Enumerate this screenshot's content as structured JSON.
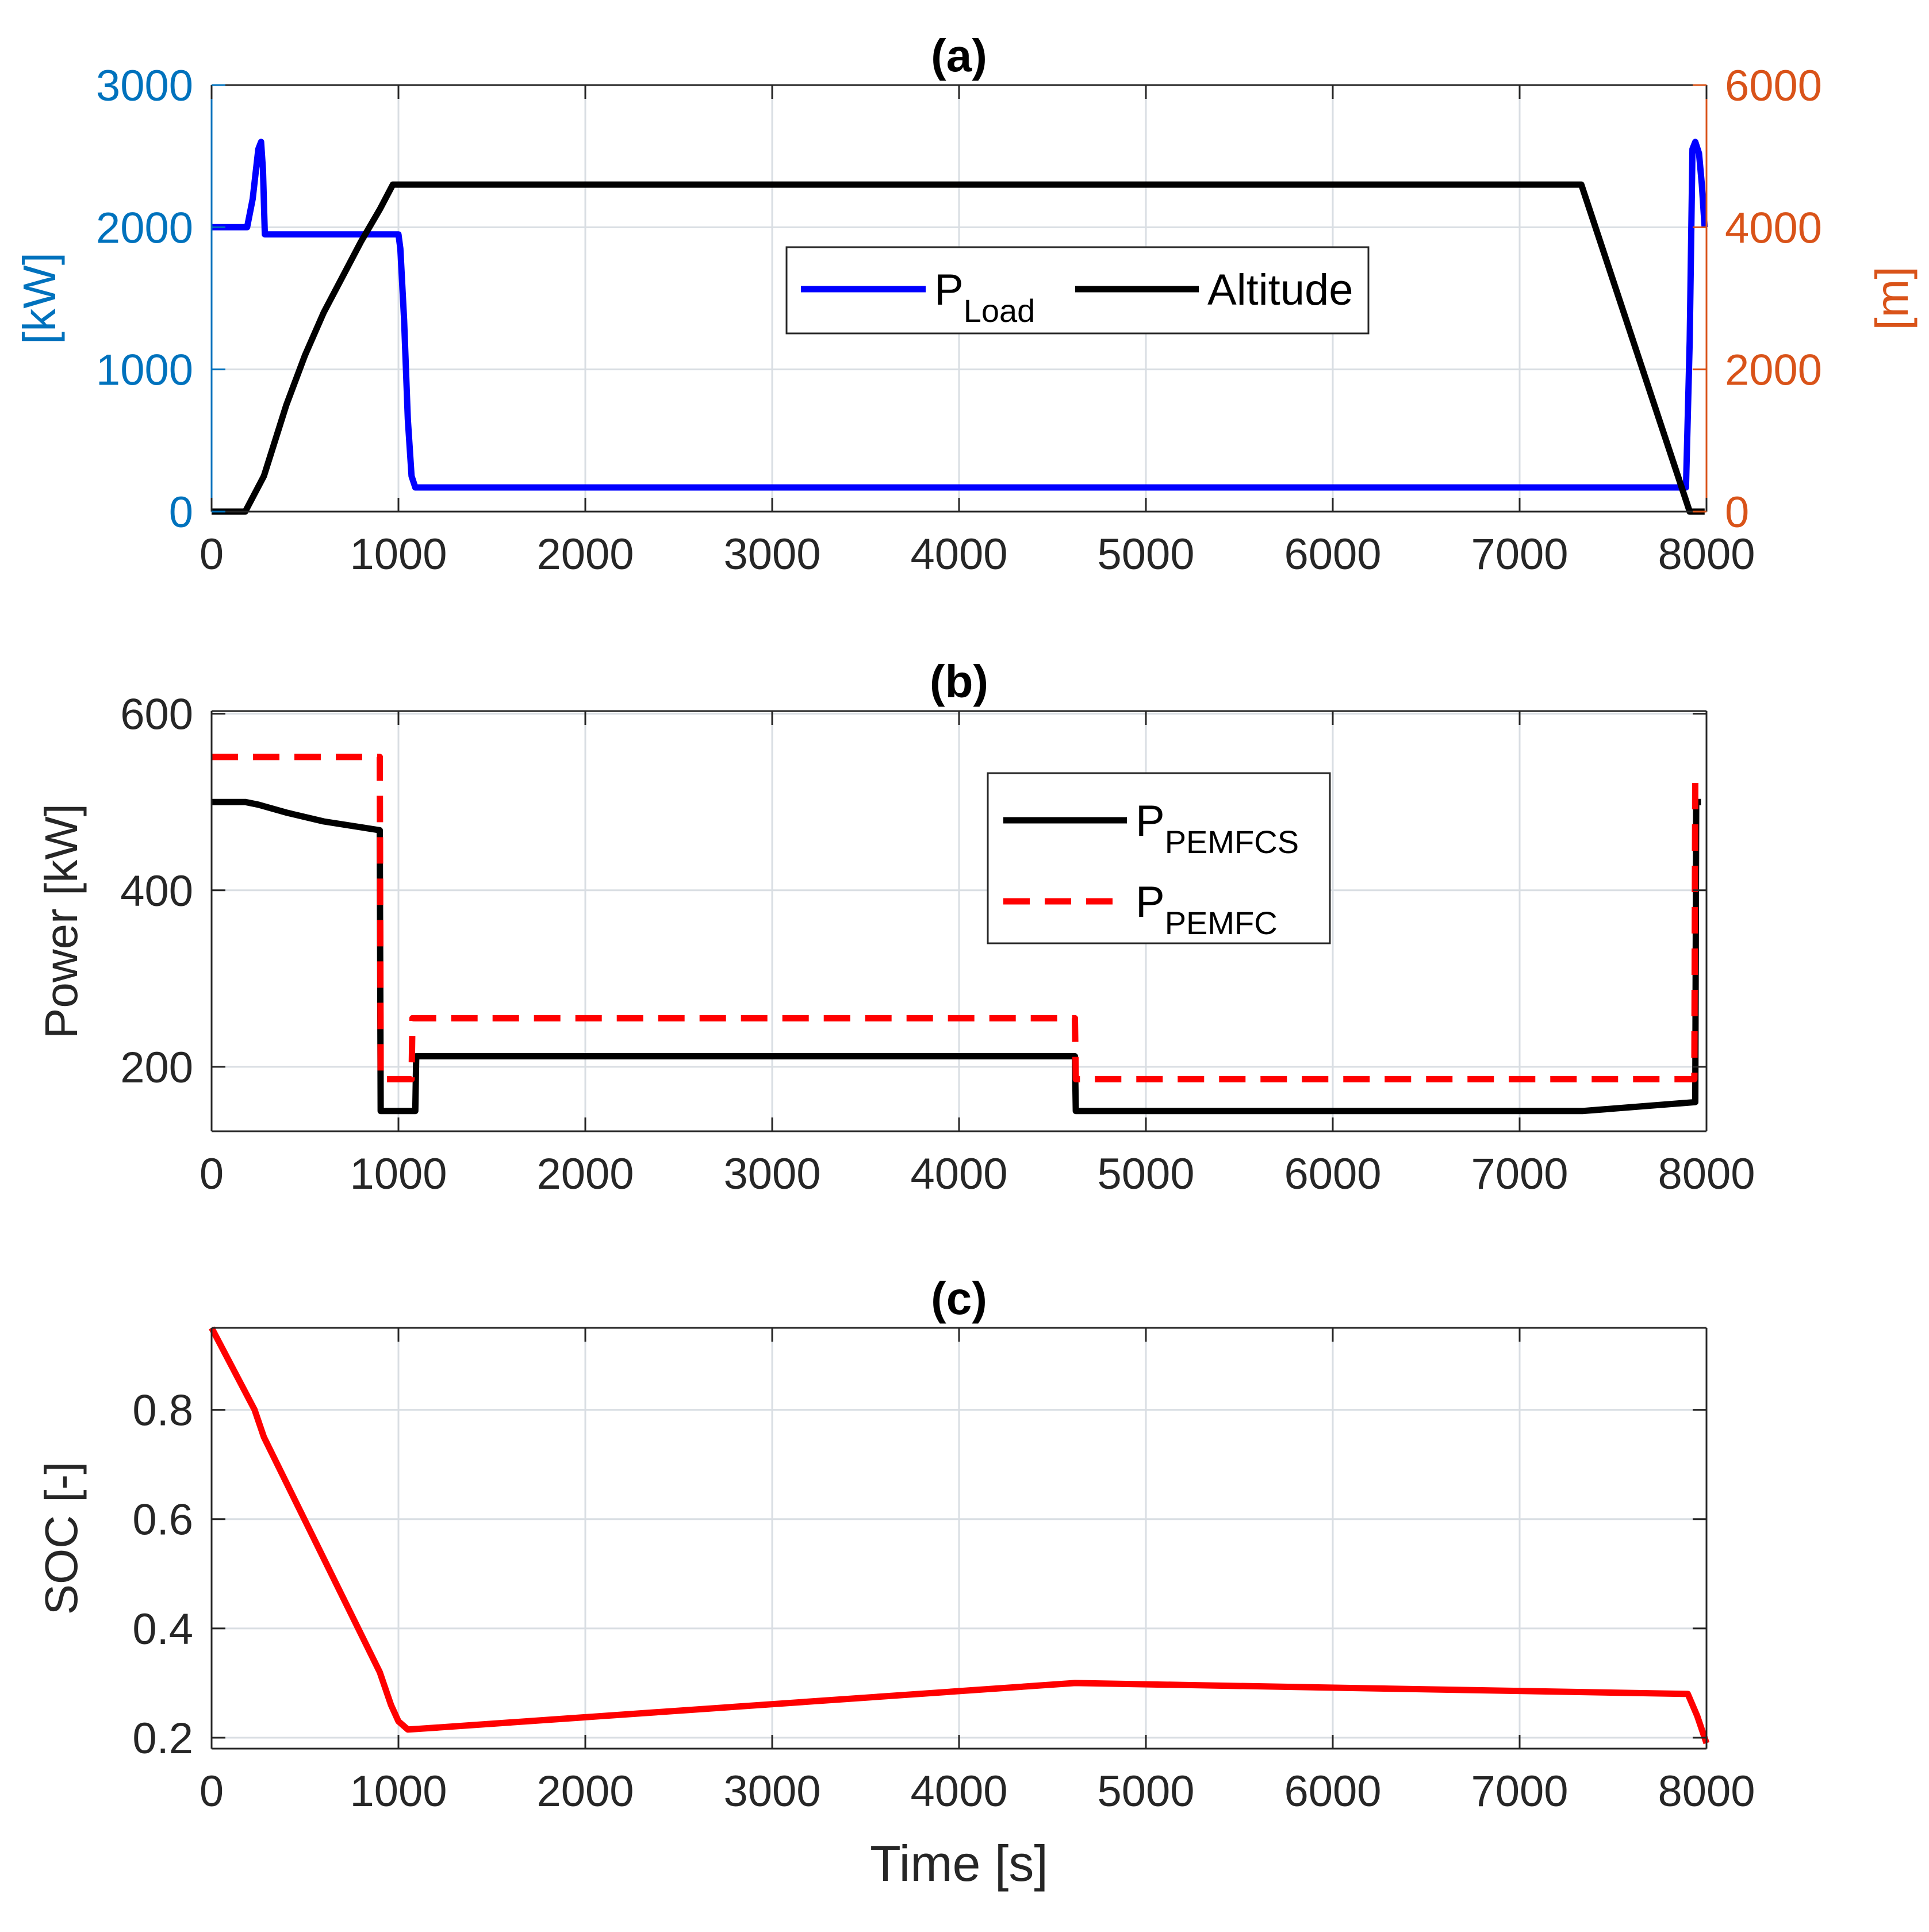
{
  "colors": {
    "blue_axis": "#0072BD",
    "orange_axis": "#D95319",
    "load_line": "#0000FF",
    "altitude_line": "#000000",
    "pemfcs_line": "#000000",
    "pemfc_line": "#FF0000",
    "soc_line": "#FF0000",
    "grid": "#D9DEE3",
    "text": "#262626"
  },
  "chart_data": [
    {
      "id": "a",
      "type": "line",
      "title": "(a)",
      "xlabel": "",
      "ylabel_left": "[kW]",
      "ylabel_right": "[m]",
      "xlim": [
        0,
        8000
      ],
      "ylim_left": [
        0,
        3000
      ],
      "ylim_right": [
        0,
        6000
      ],
      "xticks": [
        "0",
        "1000",
        "2000",
        "3000",
        "4000",
        "5000",
        "6000",
        "7000",
        "8000"
      ],
      "yticks_left": [
        "0",
        "1000",
        "2000",
        "3000"
      ],
      "yticks_right": [
        "0",
        "2000",
        "4000",
        "6000"
      ],
      "grid": true,
      "legend": {
        "position": "center",
        "orientation": "horizontal"
      },
      "series": [
        {
          "name": "P",
          "name_sub": "Load",
          "axis": "left",
          "style": "solid",
          "x": [
            0,
            190,
            220,
            250,
            265,
            275,
            285,
            295,
            1000,
            1010,
            1030,
            1050,
            1070,
            1090,
            7890,
            7910,
            7925,
            7940,
            7960,
            7975,
            7990
          ],
          "y": [
            2000,
            2000,
            2200,
            2550,
            2600,
            2400,
            1950,
            1950,
            1950,
            1850,
            1350,
            650,
            250,
            170,
            170,
            1200,
            2550,
            2600,
            2520,
            2300,
            2000
          ]
        },
        {
          "name": "Altitude",
          "axis": "right",
          "style": "solid",
          "x": [
            0,
            180,
            280,
            400,
            500,
            600,
            700,
            800,
            900,
            970,
            7330,
            7910,
            7990
          ],
          "y": [
            0,
            0,
            500,
            1500,
            2200,
            2800,
            3300,
            3800,
            4250,
            4600,
            4600,
            0,
            0
          ]
        }
      ]
    },
    {
      "id": "b",
      "type": "line",
      "title": "(b)",
      "xlabel": "",
      "ylabel": "Power [kW]",
      "xlim": [
        0,
        8000
      ],
      "ylim": [
        127,
        603
      ],
      "xticks": [
        "0",
        "1000",
        "2000",
        "3000",
        "4000",
        "5000",
        "6000",
        "7000",
        "8000"
      ],
      "yticks": [
        "200",
        "400",
        "600"
      ],
      "grid": true,
      "legend": {
        "position": "upper-right-center",
        "orientation": "vertical"
      },
      "series": [
        {
          "name": "P",
          "name_sub": "PEMFCS",
          "style": "solid",
          "x": [
            0,
            180,
            250,
            400,
            600,
            900,
            905,
            1090,
            1095,
            4620,
            4625,
            7340,
            7940,
            7945,
            7970
          ],
          "y": [
            500,
            500,
            497,
            488,
            478,
            468,
            150,
            150,
            212,
            212,
            150,
            150,
            160,
            500,
            500
          ]
        },
        {
          "name": "P",
          "name_sub": "PEMFC",
          "style": "dashed",
          "x": [
            0,
            900,
            905,
            1070,
            1075,
            4620,
            4625,
            7935,
            7940
          ],
          "y": [
            551,
            551,
            186,
            186,
            255,
            255,
            186,
            186,
            537
          ]
        }
      ]
    },
    {
      "id": "c",
      "type": "line",
      "title": "(c)",
      "xlabel": "Time [s]",
      "ylabel": "SOC [-]",
      "xlim": [
        0,
        8000
      ],
      "ylim": [
        0.18,
        0.95
      ],
      "xticks": [
        "0",
        "1000",
        "2000",
        "3000",
        "4000",
        "5000",
        "6000",
        "7000",
        "8000"
      ],
      "yticks": [
        "0.2",
        "0.4",
        "0.6",
        "0.8"
      ],
      "grid": true,
      "series": [
        {
          "name": "SOC",
          "style": "solid",
          "x": [
            0,
            230,
            280,
            900,
            960,
            1000,
            1050,
            1100,
            4620,
            7900,
            7950,
            8000
          ],
          "y": [
            0.95,
            0.8,
            0.75,
            0.32,
            0.26,
            0.23,
            0.215,
            0.216,
            0.3,
            0.28,
            0.24,
            0.19
          ]
        }
      ]
    }
  ]
}
